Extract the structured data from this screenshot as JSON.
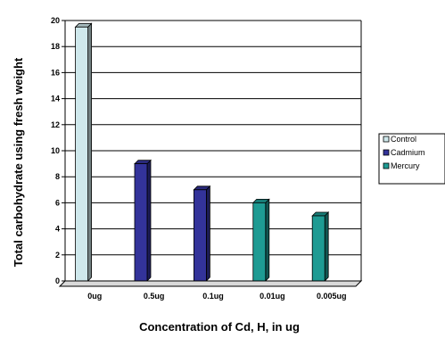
{
  "chart_data": {
    "type": "bar",
    "title": "",
    "xlabel": "Concentration of Cd, H, in ug",
    "ylabel": "Total carbohydrate using fresh weight",
    "ylim": [
      0,
      20
    ],
    "yticks": [
      0,
      2,
      4,
      6,
      8,
      10,
      12,
      14,
      16,
      18,
      20
    ],
    "grid": true,
    "legend_position": "right",
    "categories": [
      "0ug",
      "0.5ug",
      "0.1ug",
      "0.01ug",
      "0.005ug"
    ],
    "series": [
      {
        "name": "Control",
        "color": "#cfe8ec",
        "values": [
          19.5,
          null,
          null,
          null,
          null
        ]
      },
      {
        "name": "Cadmium",
        "color": "#33339a",
        "values": [
          null,
          9,
          7,
          null,
          null
        ]
      },
      {
        "name": "Mercury",
        "color": "#1e9b93",
        "values": [
          null,
          null,
          null,
          6,
          5
        ]
      }
    ]
  }
}
